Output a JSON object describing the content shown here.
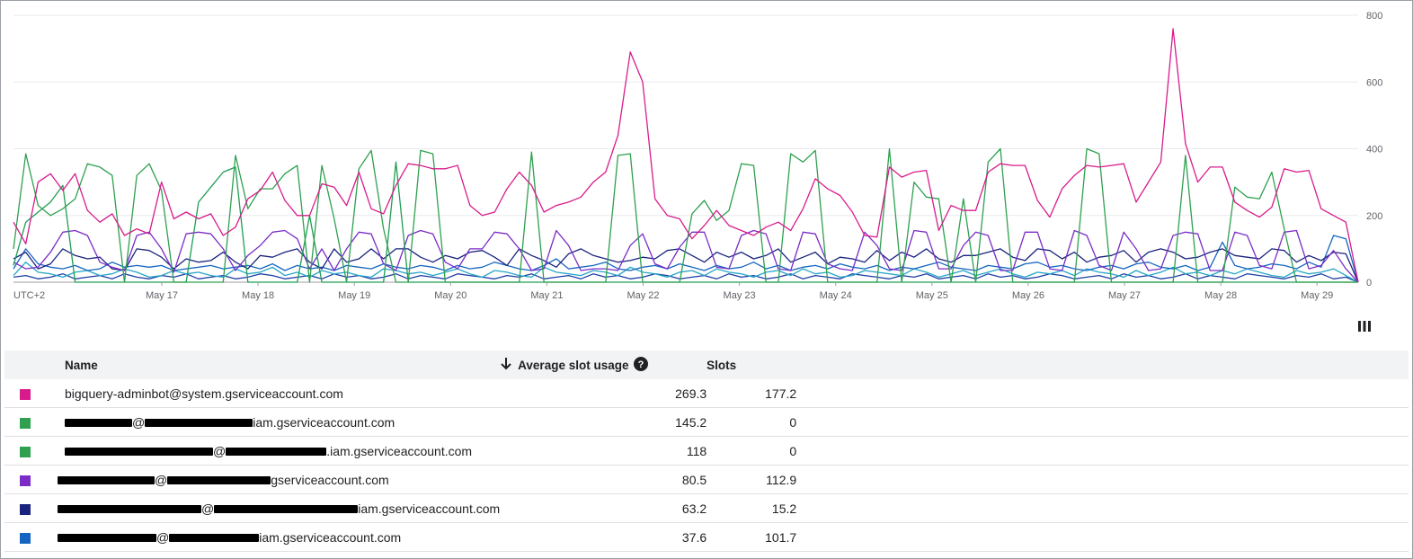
{
  "chart_data": {
    "type": "line",
    "timezone_label": "UTC+2",
    "x_tick_labels": [
      "May 17",
      "May 18",
      "May 19",
      "May 20",
      "May 21",
      "May 22",
      "May 23",
      "May 24",
      "May 25",
      "May 26",
      "May 27",
      "May 28",
      "May 29"
    ],
    "y_ticks": [
      0,
      200,
      400,
      600,
      800
    ],
    "ylim": [
      0,
      800
    ],
    "y_axis_side": "right",
    "grid": true,
    "points_per_day": 8,
    "x_start": "May 16 00:00 (approx)",
    "series": [
      {
        "color": "#d81b8c",
        "values": [
          180,
          115,
          300,
          325,
          275,
          325,
          215,
          180,
          205,
          140,
          160,
          145,
          300,
          190,
          210,
          190,
          205,
          140,
          165,
          250,
          275,
          330,
          245,
          200,
          200,
          295,
          285,
          230,
          330,
          220,
          205,
          290,
          355,
          350,
          340,
          340,
          350,
          230,
          200,
          210,
          280,
          330,
          290,
          210,
          230,
          240,
          255,
          300,
          330,
          440,
          690,
          600,
          250,
          200,
          190,
          130,
          170,
          215,
          170,
          155,
          140,
          165,
          180,
          155,
          220,
          310,
          280,
          260,
          210,
          140,
          135,
          345,
          315,
          330,
          335,
          155,
          230,
          215,
          215,
          330,
          355,
          350,
          350,
          245,
          195,
          280,
          320,
          350,
          345,
          350,
          355,
          240,
          300,
          360,
          760,
          415,
          300,
          345,
          345,
          240,
          215,
          195,
          225,
          340,
          330,
          335,
          220,
          200,
          180,
          0
        ]
      },
      {
        "color": "#2ea04f",
        "values": [
          100,
          385,
          230,
          200,
          220,
          250,
          355,
          345,
          320,
          0,
          320,
          355,
          275,
          0,
          0,
          0,
          0,
          0,
          380,
          220,
          280,
          280,
          325,
          350,
          0,
          350,
          190,
          0,
          340,
          395,
          160,
          0,
          0,
          395,
          385,
          0,
          0,
          0,
          0,
          0,
          0,
          0,
          390,
          0,
          0,
          0,
          0,
          0,
          0,
          380,
          385,
          0,
          0,
          0,
          0,
          205,
          245,
          185,
          215,
          355,
          350,
          0,
          0,
          385,
          360,
          395,
          0,
          0,
          0,
          0,
          0,
          400,
          0,
          300,
          255,
          250,
          0,
          250,
          0,
          360,
          400,
          0,
          0,
          0,
          0,
          0,
          0,
          400,
          385,
          0,
          0,
          0,
          0,
          0,
          0,
          380,
          0,
          0,
          0,
          285,
          255,
          250,
          330,
          160,
          0,
          0,
          0,
          0,
          0,
          0
        ]
      },
      {
        "color": "#1e9e52",
        "values": [
          50,
          180,
          210,
          240,
          290,
          0,
          0,
          0,
          0,
          0,
          0,
          0,
          0,
          0,
          0,
          240,
          285,
          330,
          345,
          0,
          0,
          0,
          0,
          0,
          200,
          0,
          0,
          0,
          0,
          0,
          0,
          360,
          0,
          0,
          0,
          0,
          0,
          0,
          0,
          0,
          0,
          0,
          0,
          0,
          0,
          0,
          0,
          0,
          0,
          0,
          0,
          0,
          0,
          0,
          0,
          0,
          0,
          0,
          0,
          0,
          0,
          0,
          0,
          0,
          0,
          0,
          0,
          0,
          0,
          0,
          0,
          0,
          0,
          0,
          0,
          0,
          0,
          0,
          0,
          0,
          0,
          0,
          0,
          0,
          0,
          0,
          0,
          0,
          0,
          0,
          0,
          0,
          0,
          0,
          0,
          0,
          0,
          0,
          0,
          0,
          0,
          0,
          0,
          0,
          0,
          0,
          0,
          0,
          0,
          0
        ]
      },
      {
        "color": "#7b2cc7",
        "values": [
          60,
          40,
          45,
          90,
          150,
          155,
          140,
          60,
          45,
          35,
          140,
          150,
          100,
          30,
          145,
          150,
          145,
          100,
          35,
          80,
          110,
          150,
          155,
          130,
          40,
          100,
          35,
          100,
          150,
          145,
          55,
          35,
          140,
          155,
          145,
          60,
          40,
          100,
          100,
          150,
          145,
          100,
          35,
          40,
          155,
          110,
          35,
          40,
          40,
          35,
          110,
          145,
          55,
          40,
          105,
          150,
          150,
          45,
          40,
          140,
          155,
          145,
          40,
          35,
          150,
          145,
          55,
          40,
          35,
          150,
          110,
          40,
          35,
          155,
          150,
          40,
          40,
          110,
          150,
          140,
          35,
          35,
          150,
          150,
          40,
          35,
          155,
          140,
          50,
          35,
          150,
          100,
          35,
          40,
          140,
          150,
          145,
          35,
          35,
          150,
          140,
          50,
          40,
          150,
          155,
          40,
          50,
          95,
          40,
          0
        ]
      },
      {
        "color": "#1a237e",
        "values": [
          70,
          90,
          40,
          55,
          100,
          80,
          70,
          75,
          40,
          35,
          100,
          95,
          75,
          40,
          70,
          60,
          65,
          90,
          60,
          40,
          80,
          75,
          90,
          100,
          60,
          40,
          100,
          60,
          70,
          100,
          70,
          100,
          100,
          75,
          60,
          80,
          70,
          90,
          95,
          75,
          50,
          100,
          80,
          65,
          45,
          85,
          100,
          80,
          70,
          60,
          65,
          75,
          70,
          95,
          100,
          80,
          60,
          90,
          75,
          90,
          70,
          80,
          100,
          60,
          75,
          90,
          55,
          75,
          70,
          60,
          95,
          65,
          90,
          75,
          100,
          70,
          60,
          80,
          80,
          90,
          100,
          75,
          65,
          100,
          95,
          70,
          90,
          60,
          75,
          80,
          95,
          60,
          90,
          100,
          90,
          70,
          75,
          90,
          100,
          80,
          75,
          70,
          100,
          95,
          60,
          80,
          65,
          90,
          85,
          0
        ]
      },
      {
        "color": "#1565c0",
        "values": [
          40,
          100,
          55,
          45,
          40,
          50,
          35,
          40,
          60,
          45,
          50,
          45,
          50,
          35,
          40,
          45,
          50,
          40,
          45,
          50,
          40,
          55,
          35,
          50,
          40,
          45,
          35,
          50,
          45,
          40,
          55,
          45,
          40,
          50,
          45,
          35,
          50,
          40,
          45,
          60,
          50,
          40,
          35,
          50,
          70,
          40,
          45,
          50,
          60,
          40,
          35,
          45,
          50,
          40,
          55,
          45,
          35,
          50,
          40,
          45,
          60,
          40,
          50,
          35,
          45,
          50,
          40,
          55,
          45,
          40,
          50,
          35,
          45,
          40,
          50,
          60,
          45,
          40,
          35,
          50,
          45,
          40,
          55,
          60,
          45,
          50,
          40,
          35,
          45,
          50,
          40,
          55,
          60,
          45,
          40,
          50,
          35,
          45,
          120,
          50,
          40,
          45,
          55,
          50,
          40,
          60,
          45,
          140,
          130,
          0
        ]
      },
      {
        "color": "#26a6c6",
        "values": [
          20,
          60,
          30,
          25,
          15,
          30,
          35,
          20,
          25,
          40,
          30,
          15,
          20,
          35,
          25,
          30,
          20,
          15,
          40,
          25,
          30,
          45,
          20,
          30,
          15,
          35,
          25,
          30,
          20,
          15,
          40,
          35,
          25,
          30,
          20,
          30,
          40,
          25,
          15,
          35,
          30,
          20,
          15,
          45,
          30,
          25,
          20,
          35,
          30,
          20,
          45,
          30,
          25,
          15,
          30,
          35,
          20,
          40,
          30,
          25,
          15,
          30,
          35,
          20,
          40,
          25,
          30,
          15,
          20,
          35,
          30,
          25,
          20,
          40,
          30,
          15,
          25,
          35,
          20,
          30,
          40,
          25,
          15,
          30,
          25,
          35,
          20,
          40,
          30,
          25,
          15,
          35,
          20,
          30,
          45,
          25,
          30,
          20,
          35,
          25,
          40,
          30,
          20,
          15,
          35,
          25,
          30,
          40,
          20,
          0
        ]
      },
      {
        "color": "#1f3fa5",
        "values": [
          15,
          20,
          10,
          15,
          25,
          10,
          15,
          20,
          10,
          25,
          15,
          10,
          20,
          15,
          25,
          10,
          15,
          20,
          10,
          15,
          25,
          20,
          10,
          15,
          20,
          10,
          25,
          15,
          20,
          10,
          15,
          25,
          10,
          20,
          15,
          10,
          25,
          20,
          15,
          10,
          20,
          15,
          25,
          10,
          15,
          20,
          10,
          25,
          15,
          20,
          10,
          15,
          25,
          20,
          10,
          15,
          20,
          10,
          25,
          15,
          20,
          10,
          15,
          25,
          10,
          20,
          15,
          10,
          25,
          20,
          15,
          10,
          20,
          15,
          25,
          10,
          15,
          20,
          10,
          25,
          15,
          20,
          10,
          15,
          25,
          20,
          10,
          15,
          20,
          10,
          25,
          15,
          20,
          10,
          15,
          25,
          10,
          20,
          15,
          10,
          25,
          20,
          15,
          10,
          20,
          15,
          25,
          10,
          15,
          0
        ]
      }
    ]
  },
  "toolbar": {
    "columns_icon": "view-column-icon"
  },
  "table": {
    "headers": {
      "name": "Name",
      "avg": "Average slot usage",
      "slots": "Slots"
    },
    "sort_icon": "arrow-down-icon",
    "help_icon": "help-circle-icon",
    "rows": [
      {
        "color": "#d81b8c",
        "name": "bigquery-adminbot@system.gserviceaccount.com",
        "avg": "269.3",
        "slots": "177.2"
      },
      {
        "color": "#2ea04f",
        "name_visible": "@",
        "name_suffix": "iam.gserviceaccount.com",
        "avg": "145.2",
        "slots": "0"
      },
      {
        "color": "#2ea04f",
        "name_visible": "@",
        "name_suffix": ".iam.gserviceaccount.com",
        "avg": "118",
        "slots": "0"
      },
      {
        "color": "#7b2cc7",
        "name_visible": "@",
        "name_suffix": "gserviceaccount.com",
        "avg": "80.5",
        "slots": "112.9"
      },
      {
        "color": "#1a237e",
        "name_visible": "@",
        "name_suffix": "iam.gserviceaccount.com",
        "avg": "63.2",
        "slots": "15.2"
      },
      {
        "color": "#1565c0",
        "name_visible": "@",
        "name_suffix": "iam.gserviceaccount.com",
        "avg": "37.6",
        "slots": "101.7"
      }
    ]
  }
}
